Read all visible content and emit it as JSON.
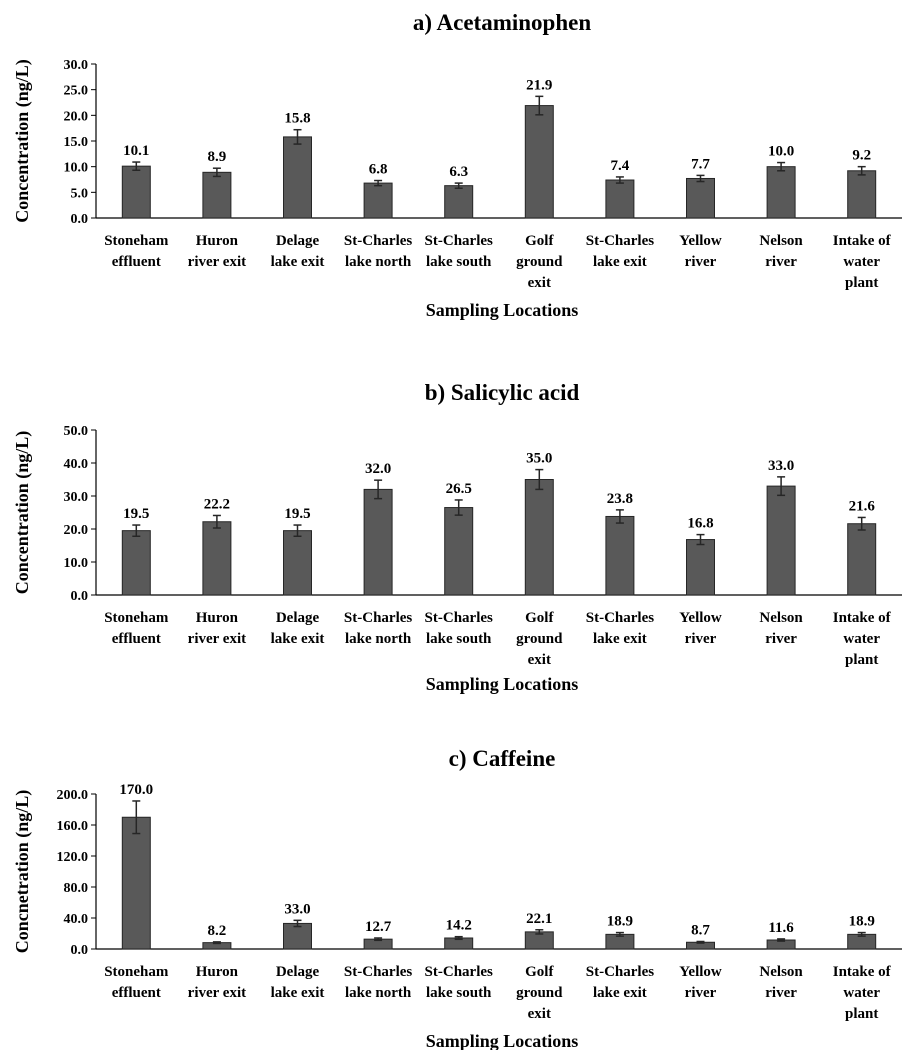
{
  "chart_data": [
    {
      "type": "bar",
      "title": "a) Acetaminophen",
      "xlabel": "Sampling Locations",
      "ylabel": "Concentration (ng/L)",
      "ylim": [
        0,
        30
      ],
      "ytick_labels": [
        "0.0",
        "5.0",
        "10.0",
        "15.0",
        "20.0",
        "25.0",
        "30.0"
      ],
      "categories": [
        [
          "Stoneham",
          "effluent"
        ],
        [
          "Huron",
          "river exit"
        ],
        [
          "Delage",
          "lake exit"
        ],
        [
          "St-Charles",
          "lake north"
        ],
        [
          "St-Charles",
          "lake south"
        ],
        [
          "Golf",
          "ground",
          "exit"
        ],
        [
          "St-Charles",
          "lake exit"
        ],
        [
          "Yellow",
          "river"
        ],
        [
          "Nelson",
          "river"
        ],
        [
          "Intake of",
          "water",
          "plant"
        ]
      ],
      "values": [
        10.1,
        8.9,
        15.8,
        6.8,
        6.3,
        21.9,
        7.4,
        7.7,
        10.0,
        9.2
      ],
      "value_labels": [
        "10.1",
        "8.9",
        "15.8",
        "6.8",
        "6.3",
        "21.9",
        "7.4",
        "7.7",
        "10.0",
        "9.2"
      ],
      "errors": [
        0.8,
        0.8,
        1.4,
        0.5,
        0.5,
        1.8,
        0.6,
        0.6,
        0.8,
        0.8
      ],
      "bar_color": "#595959",
      "grid": false
    },
    {
      "type": "bar",
      "title": "b) Salicylic acid",
      "xlabel": "Sampling Locations",
      "ylabel": "Concentration (ng/L)",
      "ylim": [
        0,
        50
      ],
      "ytick_labels": [
        "0.0",
        "10.0",
        "20.0",
        "30.0",
        "40.0",
        "50.0"
      ],
      "categories": [
        [
          "Stoneham",
          "effluent"
        ],
        [
          "Huron",
          "river exit"
        ],
        [
          "Delage",
          "lake exit"
        ],
        [
          "St-Charles",
          "lake north"
        ],
        [
          "St-Charles",
          "lake south"
        ],
        [
          "Golf",
          "ground",
          "exit"
        ],
        [
          "St-Charles",
          "lake exit"
        ],
        [
          "Yellow",
          "river"
        ],
        [
          "Nelson",
          "river"
        ],
        [
          "Intake of",
          "water",
          "plant"
        ]
      ],
      "values": [
        19.5,
        22.2,
        19.5,
        32.0,
        26.5,
        35.0,
        23.8,
        16.8,
        33.0,
        21.6
      ],
      "value_labels": [
        "19.5",
        "22.2",
        "19.5",
        "32.0",
        "26.5",
        "35.0",
        "23.8",
        "16.8",
        "33.0",
        "21.6"
      ],
      "errors": [
        1.7,
        1.9,
        1.7,
        2.8,
        2.3,
        3.0,
        2.0,
        1.5,
        2.8,
        1.9
      ],
      "bar_color": "#595959",
      "grid": false
    },
    {
      "type": "bar",
      "title": "c) Caffeine",
      "xlabel": "Sampling Locations",
      "ylabel": "Concnetration (ng/L)",
      "ylim": [
        0,
        200
      ],
      "ytick_labels": [
        "0.0",
        "40.0",
        "80.0",
        "120.0",
        "160.0",
        "200.0"
      ],
      "categories": [
        [
          "Stoneham",
          "effluent"
        ],
        [
          "Huron",
          "river exit"
        ],
        [
          "Delage",
          "lake exit"
        ],
        [
          "St-Charles",
          "lake north"
        ],
        [
          "St-Charles",
          "lake south"
        ],
        [
          "Golf",
          "ground",
          "exit"
        ],
        [
          "St-Charles",
          "lake exit"
        ],
        [
          "Yellow",
          "river"
        ],
        [
          "Nelson",
          "river"
        ],
        [
          "Intake of",
          "water",
          "plant"
        ]
      ],
      "values": [
        170.0,
        8.2,
        33.0,
        12.7,
        14.2,
        22.1,
        18.9,
        8.7,
        11.6,
        18.9
      ],
      "value_labels": [
        "170.0",
        "8.2",
        "33.0",
        "12.7",
        "14.2",
        "22.1",
        "18.9",
        "8.7",
        "11.6",
        "18.9"
      ],
      "errors": [
        21.0,
        1.0,
        4.0,
        1.5,
        1.7,
        2.7,
        2.3,
        1.0,
        1.4,
        2.3
      ],
      "bar_color": "#595959",
      "grid": false
    }
  ]
}
